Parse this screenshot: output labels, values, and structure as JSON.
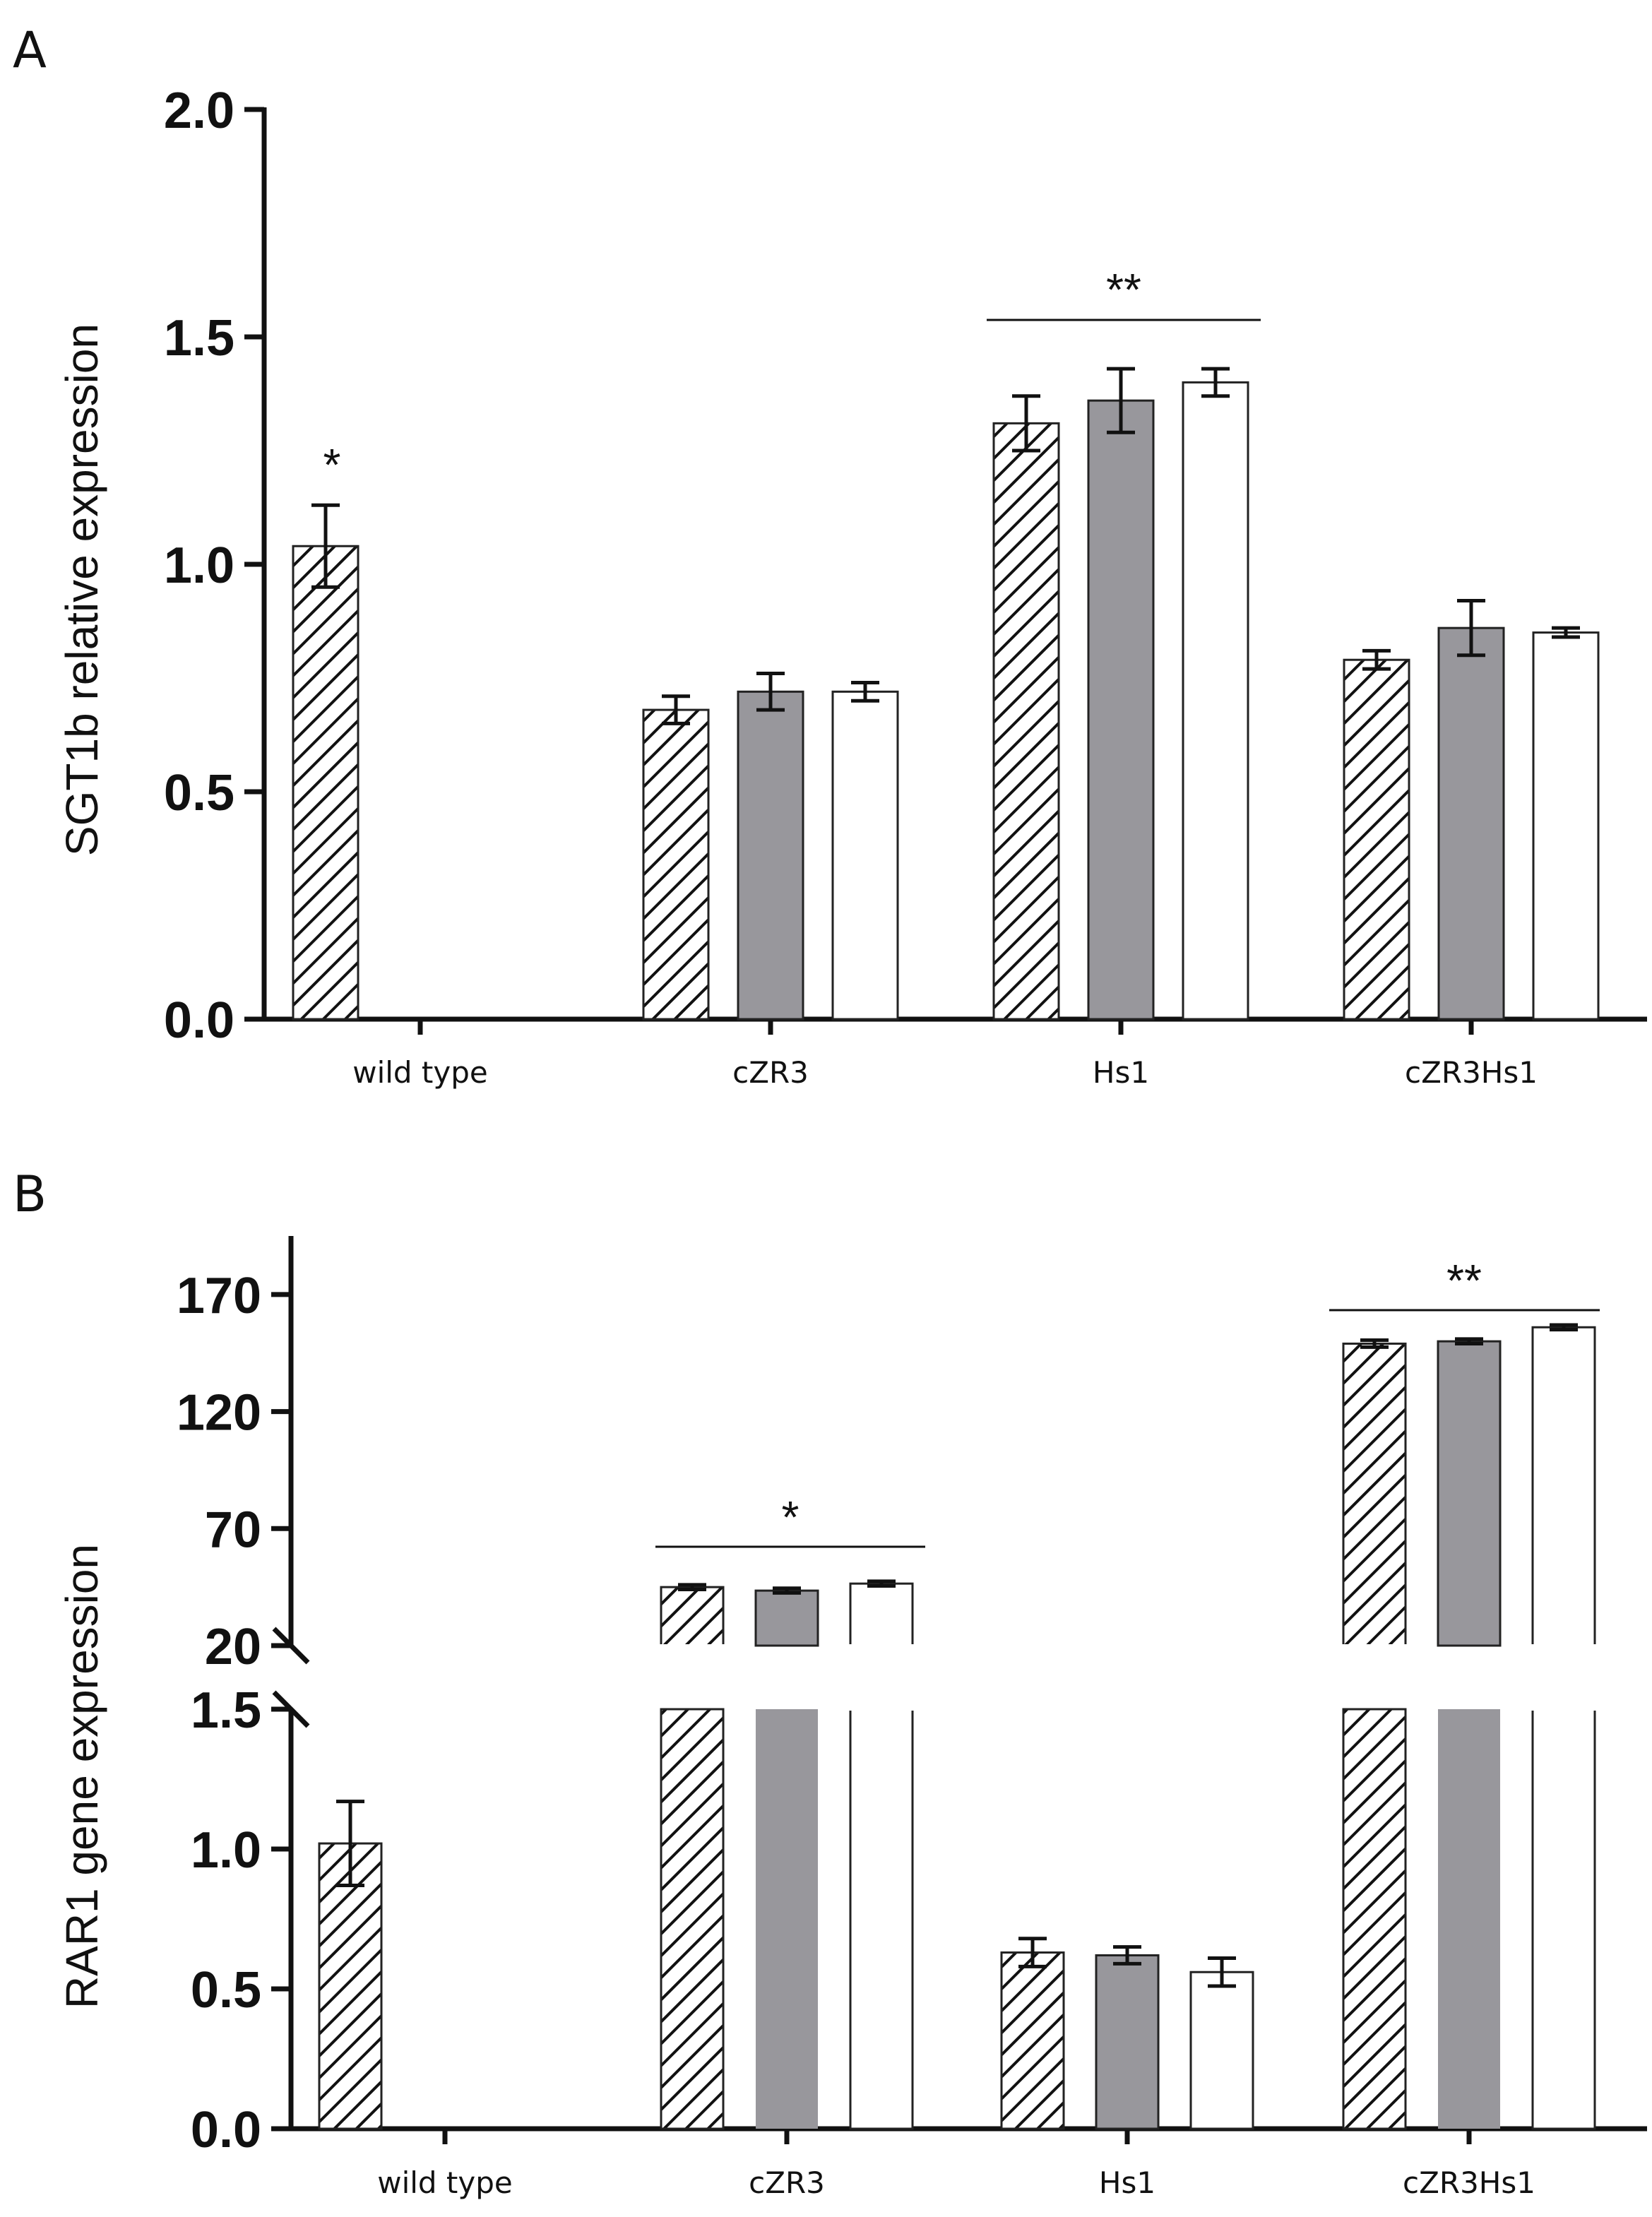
{
  "chart_data": [
    {
      "panel": "A",
      "type": "bar",
      "ylabel": "SGT1b relative expression",
      "ylim": [
        0,
        2.0
      ],
      "yticks": [
        "0.0",
        "0.5",
        "1.0",
        "1.5",
        "2.0"
      ],
      "categories": [
        "wild type",
        "cZR3",
        "Hs1",
        "cZR3Hs1"
      ],
      "series": [
        {
          "name": "series 1 (hatched)",
          "pattern": "hatch",
          "values": [
            1.04,
            0.68,
            1.31,
            0.79
          ],
          "errors": [
            0.09,
            0.03,
            0.06,
            0.02
          ]
        },
        {
          "name": "series 2 (gray)",
          "pattern": "gray",
          "values": [
            null,
            0.72,
            1.36,
            0.86
          ],
          "errors": [
            null,
            0.04,
            0.07,
            0.06
          ]
        },
        {
          "name": "series 3 (white)",
          "pattern": "white",
          "values": [
            null,
            0.72,
            1.4,
            0.85
          ],
          "errors": [
            null,
            0.02,
            0.03,
            0.01
          ]
        }
      ],
      "annotations": [
        {
          "text": "*",
          "category": "wild type"
        },
        {
          "text": "**",
          "category": "Hs1",
          "bracket": true
        }
      ]
    },
    {
      "panel": "B",
      "type": "bar",
      "ylabel": "RAR1 gene expression",
      "axis_break": true,
      "ylim_lower": [
        0,
        1.5
      ],
      "yticks_lower": [
        "0.0",
        "0.5",
        "1.0",
        "1.5"
      ],
      "ylim_upper": [
        20,
        195
      ],
      "yticks_upper": [
        "20",
        "70",
        "120",
        "170"
      ],
      "categories": [
        "wild type",
        "cZR3",
        "Hs1",
        "cZR3Hs1"
      ],
      "series": [
        {
          "name": "series 1 (hatched)",
          "pattern": "hatch",
          "values": [
            1.02,
            45.0,
            0.63,
            149.0
          ],
          "errors": [
            0.15,
            1.0,
            0.05,
            1.5
          ]
        },
        {
          "name": "series 2 (gray)",
          "pattern": "gray",
          "values": [
            null,
            43.5,
            0.62,
            150.0
          ],
          "errors": [
            null,
            1.0,
            0.03,
            1.0
          ]
        },
        {
          "name": "series 3 (white)",
          "pattern": "white",
          "values": [
            null,
            46.5,
            0.56,
            156.0
          ],
          "errors": [
            null,
            1.0,
            0.05,
            1.0
          ]
        }
      ],
      "annotations": [
        {
          "text": "*",
          "category": "cZR3",
          "bracket": true
        },
        {
          "text": "**",
          "category": "cZR3Hs1",
          "bracket": true
        }
      ]
    }
  ]
}
